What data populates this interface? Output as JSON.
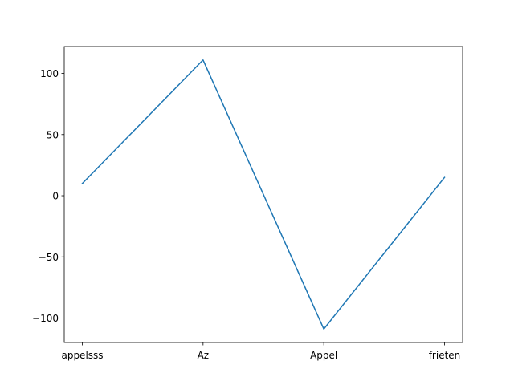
{
  "chart_data": {
    "type": "line",
    "categories": [
      "appelsss",
      "Az",
      "Appel",
      "frieten"
    ],
    "series": [
      {
        "values": [
          10,
          111,
          -109,
          15
        ]
      }
    ],
    "ylim": [
      -120,
      122
    ],
    "yticks": [
      -100,
      -50,
      0,
      50,
      100
    ],
    "ytick_labels": [
      "−100",
      "−50",
      "0",
      "50",
      "100"
    ],
    "grid": false,
    "line_color": "#1f77b4"
  }
}
